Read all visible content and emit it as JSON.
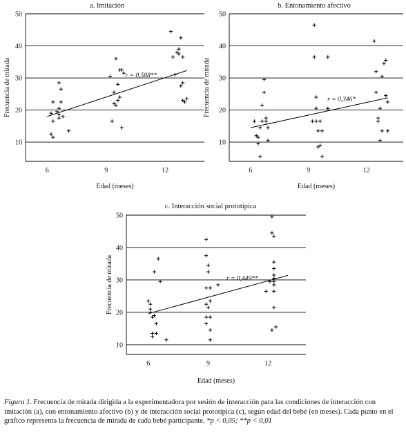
{
  "chart_data": [
    {
      "type": "scatter",
      "title": "a. Imitación",
      "xlabel": "Edad (meses)",
      "ylabel": "Frecuencia de mirada",
      "xticks": [
        6,
        9,
        12
      ],
      "yticks": [
        10,
        20,
        30,
        40,
        50
      ],
      "xlim": [
        4.9,
        14.0
      ],
      "ylim": [
        4,
        50
      ],
      "grid": "horizontal",
      "correlation_label": "r = 0,588**",
      "trend": {
        "x": [
          6.0,
          13.1
        ],
        "y": [
          18.0,
          32.3
        ]
      },
      "points": [
        {
          "x": 6.2,
          "y": 19
        },
        {
          "x": 6.2,
          "y": 12.5
        },
        {
          "x": 6.3,
          "y": 11.5
        },
        {
          "x": 6.3,
          "y": 16.5
        },
        {
          "x": 6.3,
          "y": 22.5
        },
        {
          "x": 6.5,
          "y": 19.5
        },
        {
          "x": 6.6,
          "y": 18.5
        },
        {
          "x": 6.6,
          "y": 17.5
        },
        {
          "x": 6.6,
          "y": 20.5
        },
        {
          "x": 6.6,
          "y": 28.5
        },
        {
          "x": 6.7,
          "y": 26.5
        },
        {
          "x": 6.7,
          "y": 22.5
        },
        {
          "x": 6.8,
          "y": 18
        },
        {
          "x": 7.1,
          "y": 13.5
        },
        {
          "x": 9.2,
          "y": 30.5
        },
        {
          "x": 9.3,
          "y": 16.5
        },
        {
          "x": 9.4,
          "y": 25.5
        },
        {
          "x": 9.4,
          "y": 22
        },
        {
          "x": 9.5,
          "y": 21.5
        },
        {
          "x": 9.5,
          "y": 36
        },
        {
          "x": 9.6,
          "y": 28
        },
        {
          "x": 9.6,
          "y": 23
        },
        {
          "x": 9.7,
          "y": 24
        },
        {
          "x": 9.7,
          "y": 32.5
        },
        {
          "x": 9.8,
          "y": 14.5
        },
        {
          "x": 9.8,
          "y": 32.5
        },
        {
          "x": 9.9,
          "y": 31.5
        },
        {
          "x": 12.3,
          "y": 44.5
        },
        {
          "x": 12.4,
          "y": 36.5
        },
        {
          "x": 12.5,
          "y": 31
        },
        {
          "x": 12.6,
          "y": 38
        },
        {
          "x": 12.7,
          "y": 37.5
        },
        {
          "x": 12.7,
          "y": 39
        },
        {
          "x": 12.8,
          "y": 42.5
        },
        {
          "x": 12.8,
          "y": 27.5
        },
        {
          "x": 12.9,
          "y": 28.5
        },
        {
          "x": 12.9,
          "y": 36.5
        },
        {
          "x": 12.9,
          "y": 23
        },
        {
          "x": 13.0,
          "y": 22.5
        },
        {
          "x": 13.1,
          "y": 23.5
        }
      ]
    },
    {
      "type": "scatter",
      "title": "b. Entonamiento afectivo",
      "xlabel": "Edad (meses)",
      "ylabel": "Frecuencia de mirada",
      "xticks": [
        6,
        9,
        12
      ],
      "yticks": [
        10,
        20,
        30,
        40,
        50
      ],
      "xlim": [
        4.9,
        13.9
      ],
      "ylim": [
        4,
        50
      ],
      "grid": "horizontal",
      "correlation_label": "r = 0,346*",
      "trend": {
        "x": [
          6.0,
          13.1
        ],
        "y": [
          14.5,
          23.8
        ]
      },
      "points": [
        {
          "x": 6.3,
          "y": 12
        },
        {
          "x": 6.4,
          "y": 9.5
        },
        {
          "x": 6.4,
          "y": 11.5
        },
        {
          "x": 6.5,
          "y": 5.5
        },
        {
          "x": 6.5,
          "y": 14.5
        },
        {
          "x": 6.6,
          "y": 21.5
        },
        {
          "x": 6.6,
          "y": 16.5
        },
        {
          "x": 6.7,
          "y": 25.5
        },
        {
          "x": 6.7,
          "y": 29.5
        },
        {
          "x": 6.8,
          "y": 16.5
        },
        {
          "x": 6.8,
          "y": 17.5
        },
        {
          "x": 6.9,
          "y": 10.5
        },
        {
          "x": 6.9,
          "y": 14.5
        },
        {
          "x": 6.2,
          "y": 16.5
        },
        {
          "x": 9.2,
          "y": 16.5
        },
        {
          "x": 9.3,
          "y": 46.5
        },
        {
          "x": 9.3,
          "y": 36.5
        },
        {
          "x": 9.4,
          "y": 20.5
        },
        {
          "x": 9.4,
          "y": 24
        },
        {
          "x": 9.4,
          "y": 16.5
        },
        {
          "x": 9.5,
          "y": 8.5
        },
        {
          "x": 9.5,
          "y": 13.5
        },
        {
          "x": 9.6,
          "y": 9
        },
        {
          "x": 9.6,
          "y": 16.5
        },
        {
          "x": 9.7,
          "y": 5.5
        },
        {
          "x": 9.7,
          "y": 13.5
        },
        {
          "x": 10.0,
          "y": 36.5
        },
        {
          "x": 10.0,
          "y": 20.5
        },
        {
          "x": 12.4,
          "y": 41.5
        },
        {
          "x": 12.5,
          "y": 32
        },
        {
          "x": 12.5,
          "y": 25.5
        },
        {
          "x": 12.6,
          "y": 17.5
        },
        {
          "x": 12.6,
          "y": 16.5
        },
        {
          "x": 12.7,
          "y": 10.5
        },
        {
          "x": 12.7,
          "y": 20.5
        },
        {
          "x": 12.8,
          "y": 13.5
        },
        {
          "x": 12.8,
          "y": 30.5
        },
        {
          "x": 12.9,
          "y": 34.5
        },
        {
          "x": 13.0,
          "y": 35.5
        },
        {
          "x": 13.0,
          "y": 24.5
        },
        {
          "x": 13.1,
          "y": 22.5
        },
        {
          "x": 13.1,
          "y": 13.5
        }
      ]
    },
    {
      "type": "scatter",
      "title": "c. Interacción social prototípica",
      "xlabel": "Edad (meses)",
      "ylabel": "Frecuencia de mirada",
      "xticks": [
        6,
        9,
        12
      ],
      "yticks": [
        10,
        20,
        30,
        40,
        50
      ],
      "xlim": [
        4.9,
        13.9
      ],
      "ylim": [
        7,
        50
      ],
      "grid": "horizontal",
      "correlation_label": "r = 0,449**",
      "trend": {
        "x": [
          6.0,
          13.0
        ],
        "y": [
          19.6,
          31.4
        ]
      },
      "points": [
        {
          "x": 6.0,
          "y": 23.5
        },
        {
          "x": 6.1,
          "y": 21
        },
        {
          "x": 6.1,
          "y": 22.5
        },
        {
          "x": 6.1,
          "y": 20
        },
        {
          "x": 6.2,
          "y": 12.5
        },
        {
          "x": 6.2,
          "y": 13.5
        },
        {
          "x": 6.2,
          "y": 18.5
        },
        {
          "x": 6.3,
          "y": 19
        },
        {
          "x": 6.3,
          "y": 32.5
        },
        {
          "x": 6.4,
          "y": 16.5
        },
        {
          "x": 6.4,
          "y": 13.5
        },
        {
          "x": 6.5,
          "y": 36.5
        },
        {
          "x": 6.6,
          "y": 29.5
        },
        {
          "x": 6.9,
          "y": 11.5
        },
        {
          "x": 8.9,
          "y": 42.5
        },
        {
          "x": 8.9,
          "y": 37.5
        },
        {
          "x": 8.9,
          "y": 27.5
        },
        {
          "x": 8.9,
          "y": 22.5
        },
        {
          "x": 8.9,
          "y": 18.5
        },
        {
          "x": 8.9,
          "y": 16.5
        },
        {
          "x": 9.0,
          "y": 34.5
        },
        {
          "x": 9.0,
          "y": 32.5
        },
        {
          "x": 9.0,
          "y": 21.5
        },
        {
          "x": 9.1,
          "y": 27.5
        },
        {
          "x": 9.1,
          "y": 23.5
        },
        {
          "x": 9.1,
          "y": 18.5
        },
        {
          "x": 9.1,
          "y": 14.5
        },
        {
          "x": 9.1,
          "y": 11.5
        },
        {
          "x": 9.5,
          "y": 28.5
        },
        {
          "x": 11.9,
          "y": 26.5
        },
        {
          "x": 12.1,
          "y": 29.5
        },
        {
          "x": 12.2,
          "y": 49.5
        },
        {
          "x": 12.2,
          "y": 44.5
        },
        {
          "x": 12.3,
          "y": 43.5
        },
        {
          "x": 12.3,
          "y": 35.5
        },
        {
          "x": 12.3,
          "y": 33.5
        },
        {
          "x": 12.3,
          "y": 31.5
        },
        {
          "x": 12.3,
          "y": 30.5
        },
        {
          "x": 12.3,
          "y": 29.5
        },
        {
          "x": 12.3,
          "y": 28.5
        },
        {
          "x": 12.3,
          "y": 26.5
        },
        {
          "x": 12.3,
          "y": 21.5
        },
        {
          "x": 12.2,
          "y": 14.5
        },
        {
          "x": 12.4,
          "y": 15.5
        }
      ]
    }
  ],
  "caption": {
    "label": "Figura 1.",
    "text": " Frecuencia de mirada dirigida a la experimentadora por sesión de interacción para las condiciones de interacción con imitación (a), con entonamiento afectivo (b) y de interacción social prototípica (c), según edad del bebé (en meses). Cada punto en el gráfico representa la frecuencia de mirada de cada bebé participante. ",
    "sig": "*p < 0,05; **p < 0,01"
  }
}
